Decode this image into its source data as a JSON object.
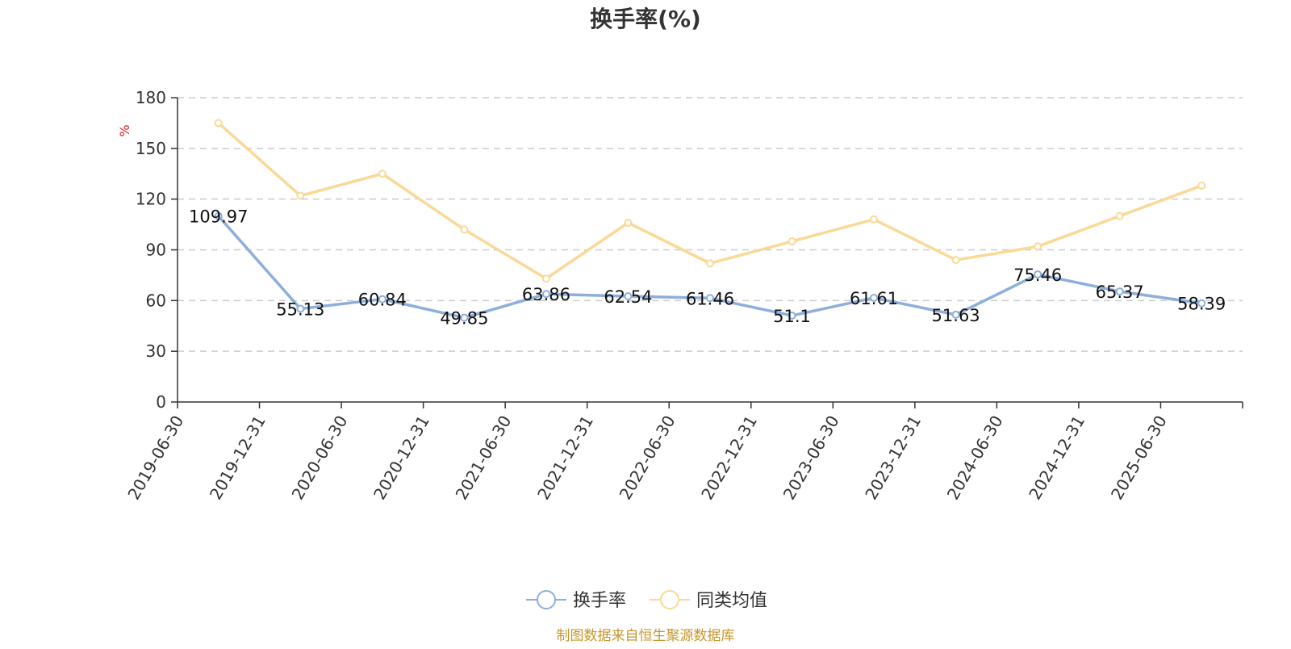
{
  "chart_data": {
    "type": "line",
    "title": "换手率(%)",
    "ylabel": "%",
    "ylim": [
      0,
      180
    ],
    "yticks": [
      0,
      30,
      60,
      90,
      120,
      150,
      180
    ],
    "categories": [
      "2019-06-30",
      "2019-12-31",
      "2020-06-30",
      "2020-12-31",
      "2021-06-30",
      "2021-12-31",
      "2022-06-30",
      "2022-12-31",
      "2023-06-30",
      "2023-12-31",
      "2024-06-30",
      "2024-12-31",
      "2025-06-30"
    ],
    "series": [
      {
        "name": "换手率",
        "color": "#8eaedb",
        "values": [
          109.97,
          55.13,
          60.84,
          49.85,
          63.86,
          62.54,
          61.46,
          51.1,
          61.61,
          51.63,
          75.46,
          65.37,
          58.39
        ],
        "labels": [
          "109.97",
          "55.13",
          "60.84",
          "49.85",
          "63.86",
          "62.54",
          "61.46",
          "51.1",
          "61.61",
          "51.63",
          "75.46",
          "65.37",
          "58.39"
        ],
        "show_labels": true
      },
      {
        "name": "同类均值",
        "color": "#fad996",
        "values": [
          165,
          122,
          135,
          102,
          73,
          106,
          82,
          95,
          108,
          84,
          92,
          110,
          128
        ],
        "show_labels": false
      }
    ],
    "grid": true,
    "legend_position": "bottom-center"
  },
  "unit_color": "#e02020",
  "source": {
    "text": "制图数据来自恒生聚源数据库",
    "color": "#c8962a"
  }
}
